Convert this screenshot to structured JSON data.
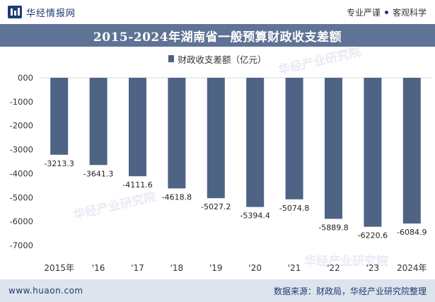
{
  "header": {
    "brand": "华经情报网",
    "tag1": "专业严谨",
    "tag2": "客观科学"
  },
  "chart_data": {
    "type": "bar",
    "title": "2015-2024年湖南省一般预算财政收支差额",
    "xlabel": "",
    "ylabel": "",
    "categories": [
      "2015年",
      "'16",
      "'17",
      "'18",
      "'19",
      "'20",
      "'21",
      "'22",
      "'23",
      "2024年"
    ],
    "series": [
      {
        "name": "财政收支差额（亿元）",
        "values": [
          -3213.3,
          -3641.3,
          -4111.6,
          -4618.8,
          -5027.2,
          -5394.4,
          -5074.8,
          -5889.8,
          -6220.6,
          -6084.9
        ],
        "labels": [
          "-3213.3",
          "-3641.3",
          "-4111.6",
          "-4618.8",
          "-5027.2",
          "-5394.4",
          "-5074.8",
          "-5889.8",
          "-6220.6",
          "-6084.9"
        ],
        "color": "#4f6384"
      }
    ],
    "ylim": [
      -7000,
      0
    ],
    "yticks": [
      0,
      -1000,
      -2000,
      -3000,
      -4000,
      -5000,
      -6000,
      -7000
    ],
    "ytick_labels": [
      "000",
      "-1000",
      "-2000",
      "-3000",
      "-4000",
      "-5000",
      "-6000",
      "-7000"
    ],
    "grid": false,
    "legend": "top-center"
  },
  "watermark": "华经产业研究院",
  "footer": {
    "url": "www.huaon.com",
    "source": "数据来源：财政局，华经产业研究院整理"
  }
}
